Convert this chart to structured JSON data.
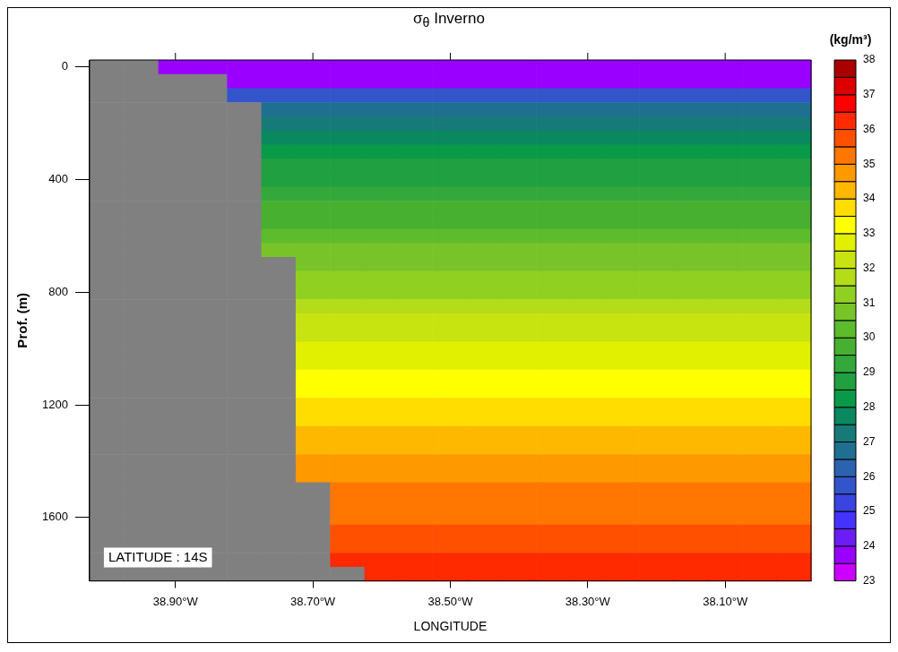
{
  "chart_data": {
    "type": "heatmap",
    "title": "σ$_{θ}$ Inverno",
    "xlabel": "LONGITUDE",
    "ylabel": "Prof. (m)",
    "clabel": "(kg/m³)",
    "annotations": [
      "LATITUDE : 14S"
    ],
    "clim": [
      23,
      38
    ],
    "cticks": [
      23,
      24,
      25,
      26,
      27,
      28,
      29,
      30,
      31,
      32,
      33,
      34,
      35,
      36,
      37,
      38
    ],
    "colors": [
      "#cc00ff",
      "#9900ff",
      "#6a1ef5",
      "#4433ff",
      "#3a44e0",
      "#3355cc",
      "#2b63b0",
      "#1f7090",
      "#187a78",
      "#0a8860",
      "#089a48",
      "#20a040",
      "#34a83a",
      "#48b030",
      "#5cbc2c",
      "#78c428",
      "#90d020",
      "#b4dc18",
      "#c8e410",
      "#e0f000",
      "#ffff00",
      "#ffdd00",
      "#ffb800",
      "#ff9900",
      "#ff7700",
      "#ff5000",
      "#ff2a00",
      "#ff0000",
      "#dd0000",
      "#aa0000"
    ],
    "categories": [
      null,
      null,
      "38.90°W",
      null,
      null,
      null,
      "38.70°W",
      null,
      null,
      null,
      "38.50°W",
      null,
      null,
      null,
      "38.30°W",
      null,
      null,
      null,
      "38.10°W",
      null,
      null
    ],
    "y_categories": [
      "0",
      null,
      null,
      null,
      null,
      null,
      null,
      null,
      "400",
      null,
      null,
      null,
      null,
      null,
      null,
      null,
      "800",
      null,
      null,
      null,
      null,
      null,
      null,
      null,
      "1200",
      null,
      null,
      null,
      null,
      null,
      null,
      null,
      "1600",
      null,
      null,
      null,
      null
    ],
    "cells": [
      [
        null,
        null,
        23.75,
        23.75,
        23.75,
        23.75,
        23.75,
        23.75,
        23.75,
        23.75,
        23.75,
        23.75,
        23.75,
        23.75,
        23.75,
        23.75,
        23.75,
        23.75,
        23.75,
        23.75,
        23.75
      ],
      [
        null,
        null,
        null,
        null,
        23.75,
        23.75,
        23.75,
        23.75,
        23.75,
        23.75,
        23.75,
        23.75,
        23.75,
        23.75,
        23.75,
        23.75,
        23.75,
        23.75,
        23.75,
        23.75,
        23.75
      ],
      [
        null,
        null,
        null,
        null,
        25.75,
        25.75,
        25.75,
        25.75,
        25.75,
        25.75,
        25.75,
        25.75,
        25.75,
        25.75,
        25.75,
        25.75,
        25.75,
        25.75,
        25.75,
        25.75,
        25.75
      ],
      [
        null,
        null,
        null,
        null,
        null,
        26.75,
        26.75,
        26.75,
        26.75,
        26.75,
        26.75,
        26.75,
        26.75,
        26.75,
        26.75,
        26.75,
        26.75,
        26.75,
        26.75,
        26.75,
        26.75
      ],
      [
        null,
        null,
        null,
        null,
        null,
        27.25,
        27.25,
        27.25,
        27.25,
        27.25,
        27.25,
        27.25,
        27.25,
        27.25,
        27.25,
        27.25,
        27.25,
        27.25,
        27.25,
        27.25,
        27.25
      ],
      [
        null,
        null,
        null,
        null,
        null,
        27.75,
        27.75,
        27.75,
        27.75,
        27.75,
        27.75,
        27.75,
        27.75,
        27.75,
        27.75,
        27.75,
        27.75,
        27.75,
        27.75,
        27.75,
        27.75
      ],
      [
        null,
        null,
        null,
        null,
        null,
        28.25,
        28.25,
        28.25,
        28.25,
        28.25,
        28.25,
        28.25,
        28.25,
        28.25,
        28.25,
        28.25,
        28.25,
        28.25,
        28.25,
        28.25,
        28.25
      ],
      [
        null,
        null,
        null,
        null,
        null,
        28.75,
        28.75,
        28.75,
        28.75,
        28.75,
        28.75,
        28.75,
        28.75,
        28.75,
        28.75,
        28.75,
        28.75,
        28.75,
        28.75,
        28.75,
        28.75
      ],
      [
        null,
        null,
        null,
        null,
        null,
        28.75,
        28.75,
        28.75,
        28.75,
        28.75,
        28.75,
        28.75,
        28.75,
        28.75,
        28.75,
        28.75,
        28.75,
        28.75,
        28.75,
        28.75,
        28.75
      ],
      [
        null,
        null,
        null,
        null,
        null,
        29.25,
        29.25,
        29.25,
        29.25,
        29.25,
        29.25,
        29.25,
        29.25,
        29.25,
        29.25,
        29.25,
        29.25,
        29.25,
        29.25,
        29.25,
        29.25
      ],
      [
        null,
        null,
        null,
        null,
        null,
        29.75,
        29.75,
        29.75,
        29.75,
        29.75,
        29.75,
        29.75,
        29.75,
        29.75,
        29.75,
        29.75,
        29.75,
        29.75,
        29.75,
        29.75,
        29.75
      ],
      [
        null,
        null,
        null,
        null,
        null,
        29.75,
        29.75,
        29.75,
        29.75,
        29.75,
        29.75,
        29.75,
        29.75,
        29.75,
        29.75,
        29.75,
        29.75,
        29.75,
        29.75,
        29.75,
        29.75
      ],
      [
        null,
        null,
        null,
        null,
        null,
        30.25,
        30.25,
        30.25,
        30.25,
        30.25,
        30.25,
        30.25,
        30.25,
        30.25,
        30.25,
        30.25,
        30.25,
        30.25,
        30.25,
        30.25,
        30.25
      ],
      [
        null,
        null,
        null,
        null,
        null,
        30.75,
        30.75,
        30.75,
        30.75,
        30.75,
        30.75,
        30.75,
        30.75,
        30.75,
        30.75,
        30.75,
        30.75,
        30.75,
        30.75,
        30.75,
        30.75
      ],
      [
        null,
        null,
        null,
        null,
        null,
        null,
        30.75,
        30.75,
        30.75,
        30.75,
        30.75,
        30.75,
        30.75,
        30.75,
        30.75,
        30.75,
        30.75,
        30.75,
        30.75,
        30.75,
        30.75
      ],
      [
        null,
        null,
        null,
        null,
        null,
        null,
        31.25,
        31.25,
        31.25,
        31.25,
        31.25,
        31.25,
        31.25,
        31.25,
        31.25,
        31.25,
        31.25,
        31.25,
        31.25,
        31.25,
        31.25
      ],
      [
        null,
        null,
        null,
        null,
        null,
        null,
        31.25,
        31.25,
        31.25,
        31.25,
        31.25,
        31.25,
        31.25,
        31.25,
        31.25,
        31.25,
        31.25,
        31.25,
        31.25,
        31.25,
        31.25
      ],
      [
        null,
        null,
        null,
        null,
        null,
        null,
        31.75,
        31.75,
        31.75,
        31.75,
        31.75,
        31.75,
        31.75,
        31.75,
        31.75,
        31.75,
        31.75,
        31.75,
        31.75,
        31.75,
        31.75
      ],
      [
        null,
        null,
        null,
        null,
        null,
        null,
        32.25,
        32.25,
        32.25,
        32.25,
        32.25,
        32.25,
        32.25,
        32.25,
        32.25,
        32.25,
        32.25,
        32.25,
        32.25,
        32.25,
        32.25
      ],
      [
        null,
        null,
        null,
        null,
        null,
        null,
        32.25,
        32.25,
        32.25,
        32.25,
        32.25,
        32.25,
        32.25,
        32.25,
        32.25,
        32.25,
        32.25,
        32.25,
        32.25,
        32.25,
        32.25
      ],
      [
        null,
        null,
        null,
        null,
        null,
        null,
        32.75,
        32.75,
        32.75,
        32.75,
        32.75,
        32.75,
        32.75,
        32.75,
        32.75,
        32.75,
        32.75,
        32.75,
        32.75,
        32.75,
        32.75
      ],
      [
        null,
        null,
        null,
        null,
        null,
        null,
        32.75,
        32.75,
        32.75,
        32.75,
        32.75,
        32.75,
        32.75,
        32.75,
        32.75,
        32.75,
        32.75,
        32.75,
        32.75,
        32.75,
        32.75
      ],
      [
        null,
        null,
        null,
        null,
        null,
        null,
        33.25,
        33.25,
        33.25,
        33.25,
        33.25,
        33.25,
        33.25,
        33.25,
        33.25,
        33.25,
        33.25,
        33.25,
        33.25,
        33.25,
        33.25
      ],
      [
        null,
        null,
        null,
        null,
        null,
        null,
        33.25,
        33.25,
        33.25,
        33.25,
        33.25,
        33.25,
        33.25,
        33.25,
        33.25,
        33.25,
        33.25,
        33.25,
        33.25,
        33.25,
        33.25
      ],
      [
        null,
        null,
        null,
        null,
        null,
        null,
        33.75,
        33.75,
        33.75,
        33.75,
        33.75,
        33.75,
        33.75,
        33.75,
        33.75,
        33.75,
        33.75,
        33.75,
        33.75,
        33.75,
        33.75
      ],
      [
        null,
        null,
        null,
        null,
        null,
        null,
        33.75,
        33.75,
        33.75,
        33.75,
        33.75,
        33.75,
        33.75,
        33.75,
        33.75,
        33.75,
        33.75,
        33.75,
        33.75,
        33.75,
        33.75
      ],
      [
        null,
        null,
        null,
        null,
        null,
        null,
        34.25,
        34.25,
        34.25,
        34.25,
        34.25,
        34.25,
        34.25,
        34.25,
        34.25,
        34.25,
        34.25,
        34.25,
        34.25,
        34.25,
        34.25
      ],
      [
        null,
        null,
        null,
        null,
        null,
        null,
        34.25,
        34.25,
        34.25,
        34.25,
        34.25,
        34.25,
        34.25,
        34.25,
        34.25,
        34.25,
        34.25,
        34.25,
        34.25,
        34.25,
        34.25
      ],
      [
        null,
        null,
        null,
        null,
        null,
        null,
        34.75,
        34.75,
        34.75,
        34.75,
        34.75,
        34.75,
        34.75,
        34.75,
        34.75,
        34.75,
        34.75,
        34.75,
        34.75,
        34.75,
        34.75
      ],
      [
        null,
        null,
        null,
        null,
        null,
        null,
        34.75,
        34.75,
        34.75,
        34.75,
        34.75,
        34.75,
        34.75,
        34.75,
        34.75,
        34.75,
        34.75,
        34.75,
        34.75,
        34.75,
        34.75
      ],
      [
        null,
        null,
        null,
        null,
        null,
        null,
        null,
        35.25,
        35.25,
        35.25,
        35.25,
        35.25,
        35.25,
        35.25,
        35.25,
        35.25,
        35.25,
        35.25,
        35.25,
        35.25,
        35.25
      ],
      [
        null,
        null,
        null,
        null,
        null,
        null,
        null,
        35.25,
        35.25,
        35.25,
        35.25,
        35.25,
        35.25,
        35.25,
        35.25,
        35.25,
        35.25,
        35.25,
        35.25,
        35.25,
        35.25
      ],
      [
        null,
        null,
        null,
        null,
        null,
        null,
        null,
        35.25,
        35.25,
        35.25,
        35.25,
        35.25,
        35.25,
        35.25,
        35.25,
        35.25,
        35.25,
        35.25,
        35.25,
        35.25,
        35.25
      ],
      [
        null,
        null,
        null,
        null,
        null,
        null,
        null,
        35.75,
        35.75,
        35.75,
        35.75,
        35.75,
        35.75,
        35.75,
        35.75,
        35.75,
        35.75,
        35.75,
        35.75,
        35.75,
        35.75
      ],
      [
        null,
        null,
        null,
        null,
        null,
        null,
        null,
        35.75,
        35.75,
        35.75,
        35.75,
        35.75,
        35.75,
        35.75,
        35.75,
        35.75,
        35.75,
        35.75,
        35.75,
        35.75,
        35.75
      ],
      [
        null,
        null,
        null,
        null,
        null,
        null,
        null,
        36.25,
        36.25,
        36.25,
        36.25,
        36.25,
        36.25,
        36.25,
        36.25,
        36.25,
        36.25,
        36.25,
        36.25,
        36.25,
        36.25
      ],
      [
        null,
        null,
        null,
        null,
        null,
        null,
        null,
        null,
        36.25,
        36.25,
        36.25,
        36.25,
        36.25,
        36.25,
        36.25,
        36.25,
        36.25,
        36.25,
        36.25,
        36.25,
        36.25
      ]
    ]
  }
}
